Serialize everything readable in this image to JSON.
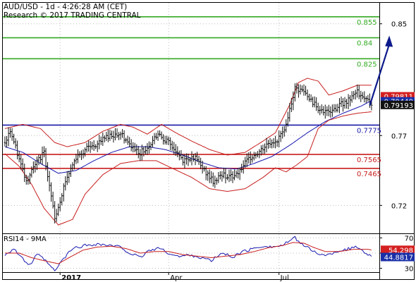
{
  "header": {
    "line1": "AUD/USD - 1d - 4:26:28 AM (CET)",
    "line2": "Research © 2017 TRADING CENTRAL"
  },
  "chart_data": [
    {
      "type": "candlestick",
      "title": "AUD/USD - 1d - 4:26:28 AM (CET)",
      "x_ticks": [
        {
          "label": "2017",
          "bold": true,
          "index": 31
        },
        {
          "label": "Apr",
          "bold": false,
          "index": 92
        },
        {
          "label": "Jul",
          "bold": false,
          "index": 154
        }
      ],
      "y_ticks": [
        0.72,
        0.77,
        0.85
      ],
      "ylim": [
        0.7,
        0.865
      ],
      "resistance_levels": [
        {
          "value": 0.855,
          "label": "0.855",
          "color": "#33aa22"
        },
        {
          "value": 0.84,
          "label": "0.84",
          "color": "#33aa22"
        },
        {
          "value": 0.825,
          "label": "0.825",
          "color": "#33aa22"
        }
      ],
      "pivot_level": {
        "value": 0.7775,
        "label": "0.7775",
        "color": "#1a1aa8"
      },
      "support_levels": [
        {
          "value": 0.7565,
          "label": "0.7565",
          "color": "#c81e1e"
        },
        {
          "value": 0.7465,
          "label": "0.7465",
          "color": "#c81e1e"
        }
      ],
      "price_tags": [
        {
          "value": 0.79811,
          "label": "0.79811",
          "color": "#d42020"
        },
        {
          "value": 0.79449,
          "label": "0.79449",
          "color": "#1a2fa8"
        },
        {
          "value": 0.79193,
          "label": "0.79193",
          "color": "#111111"
        }
      ],
      "target": [
        {
          "index": 205,
          "price": 0.7915
        },
        {
          "index": 216,
          "price": 0.8395
        }
      ],
      "series": [
        {
          "name": "price",
          "color": "#000000",
          "key_points": [
            [
              0,
              0.765
            ],
            [
              3,
              0.7735
            ],
            [
              8,
              0.753
            ],
            [
              12,
              0.738
            ],
            [
              18,
              0.751
            ],
            [
              22,
              0.758
            ],
            [
              28,
              0.71
            ],
            [
              34,
              0.737
            ],
            [
              40,
              0.754
            ],
            [
              45,
              0.76
            ],
            [
              52,
              0.764
            ],
            [
              58,
              0.77
            ],
            [
              65,
              0.771
            ],
            [
              70,
              0.763
            ],
            [
              76,
              0.758
            ],
            [
              80,
              0.761
            ],
            [
              86,
              0.772
            ],
            [
              94,
              0.762
            ],
            [
              100,
              0.752
            ],
            [
              106,
              0.755
            ],
            [
              112,
              0.745
            ],
            [
              117,
              0.737
            ],
            [
              122,
              0.742
            ],
            [
              128,
              0.74
            ],
            [
              133,
              0.747
            ],
            [
              138,
              0.754
            ],
            [
              143,
              0.758
            ],
            [
              148,
              0.764
            ],
            [
              152,
              0.766
            ],
            [
              156,
              0.771
            ],
            [
              160,
              0.788
            ],
            [
              163,
              0.803
            ],
            [
              168,
              0.801
            ],
            [
              172,
              0.795
            ],
            [
              176,
              0.79
            ],
            [
              180,
              0.786
            ],
            [
              186,
              0.79
            ],
            [
              192,
              0.795
            ],
            [
              198,
              0.801
            ],
            [
              202,
              0.798
            ],
            [
              206,
              0.792
            ]
          ]
        },
        {
          "name": "moving average",
          "color": "#1a1ab0",
          "key_points": [
            [
              0,
              0.762
            ],
            [
              10,
              0.758
            ],
            [
              20,
              0.75
            ],
            [
              30,
              0.743
            ],
            [
              40,
              0.745
            ],
            [
              50,
              0.752
            ],
            [
              60,
              0.758
            ],
            [
              70,
              0.762
            ],
            [
              80,
              0.762
            ],
            [
              90,
              0.76
            ],
            [
              100,
              0.756
            ],
            [
              110,
              0.751
            ],
            [
              120,
              0.747
            ],
            [
              130,
              0.746
            ],
            [
              140,
              0.75
            ],
            [
              150,
              0.755
            ],
            [
              160,
              0.763
            ],
            [
              170,
              0.772
            ],
            [
              180,
              0.78
            ],
            [
              190,
              0.786
            ],
            [
              200,
              0.791
            ],
            [
              206,
              0.795
            ]
          ]
        },
        {
          "name": "bollinger upper",
          "color": "#c81e1e",
          "key_points": [
            [
              0,
              0.775
            ],
            [
              10,
              0.778
            ],
            [
              20,
              0.775
            ],
            [
              28,
              0.765
            ],
            [
              35,
              0.762
            ],
            [
              45,
              0.765
            ],
            [
              55,
              0.773
            ],
            [
              65,
              0.778
            ],
            [
              72,
              0.776
            ],
            [
              80,
              0.771
            ],
            [
              88,
              0.778
            ],
            [
              96,
              0.772
            ],
            [
              105,
              0.766
            ],
            [
              115,
              0.76
            ],
            [
              125,
              0.756
            ],
            [
              135,
              0.758
            ],
            [
              145,
              0.766
            ],
            [
              152,
              0.772
            ],
            [
              160,
              0.792
            ],
            [
              165,
              0.808
            ],
            [
              170,
              0.811
            ],
            [
              176,
              0.809
            ],
            [
              182,
              0.799
            ],
            [
              190,
              0.802
            ],
            [
              198,
              0.806
            ],
            [
              206,
              0.806
            ]
          ]
        },
        {
          "name": "bollinger lower",
          "color": "#c81e1e",
          "key_points": [
            [
              0,
              0.757
            ],
            [
              8,
              0.748
            ],
            [
              15,
              0.735
            ],
            [
              22,
              0.718
            ],
            [
              30,
              0.706
            ],
            [
              38,
              0.71
            ],
            [
              45,
              0.728
            ],
            [
              55,
              0.742
            ],
            [
              65,
              0.75
            ],
            [
              75,
              0.752
            ],
            [
              85,
              0.752
            ],
            [
              95,
              0.746
            ],
            [
              105,
              0.74
            ],
            [
              115,
              0.732
            ],
            [
              125,
              0.73
            ],
            [
              135,
              0.732
            ],
            [
              145,
              0.74
            ],
            [
              152,
              0.747
            ],
            [
              158,
              0.744
            ],
            [
              164,
              0.749
            ],
            [
              170,
              0.755
            ],
            [
              176,
              0.775
            ],
            [
              182,
              0.781
            ],
            [
              190,
              0.784
            ],
            [
              198,
              0.786
            ],
            [
              206,
              0.787
            ]
          ]
        }
      ]
    },
    {
      "type": "line",
      "title": "RSI14 - 9MA",
      "y_ticks": [
        70,
        50,
        30
      ],
      "ylim": [
        25,
        75
      ],
      "value_tags": [
        {
          "value": 54.298,
          "label": "54.298",
          "color": "#d42020"
        },
        {
          "value": 44.8817,
          "label": "44.8817",
          "color": "#1a2fa8"
        }
      ],
      "series": [
        {
          "name": "RSI14",
          "color": "#1a1ab0",
          "key_points": [
            [
              0,
              48
            ],
            [
              5,
              56
            ],
            [
              10,
              42
            ],
            [
              14,
              34
            ],
            [
              18,
              48
            ],
            [
              22,
              42
            ],
            [
              28,
              26
            ],
            [
              32,
              40
            ],
            [
              38,
              56
            ],
            [
              45,
              60
            ],
            [
              52,
              62
            ],
            [
              58,
              60
            ],
            [
              65,
              58
            ],
            [
              70,
              50
            ],
            [
              76,
              44
            ],
            [
              80,
              52
            ],
            [
              86,
              57
            ],
            [
              92,
              50
            ],
            [
              98,
              45
            ],
            [
              104,
              48
            ],
            [
              110,
              44
            ],
            [
              116,
              40
            ],
            [
              122,
              50
            ],
            [
              128,
              45
            ],
            [
              134,
              52
            ],
            [
              140,
              56
            ],
            [
              146,
              60
            ],
            [
              150,
              58
            ],
            [
              156,
              60
            ],
            [
              160,
              66
            ],
            [
              163,
              70
            ],
            [
              168,
              60
            ],
            [
              172,
              54
            ],
            [
              176,
              50
            ],
            [
              180,
              46
            ],
            [
              186,
              52
            ],
            [
              192,
              55
            ],
            [
              198,
              58
            ],
            [
              202,
              52
            ],
            [
              206,
              45
            ]
          ]
        },
        {
          "name": "9MA",
          "color": "#c81e1e",
          "key_points": [
            [
              0,
              50
            ],
            [
              8,
              50
            ],
            [
              15,
              44
            ],
            [
              22,
              40
            ],
            [
              30,
              36
            ],
            [
              36,
              44
            ],
            [
              44,
              54
            ],
            [
              52,
              58
            ],
            [
              60,
              59
            ],
            [
              68,
              56
            ],
            [
              76,
              50
            ],
            [
              84,
              52
            ],
            [
              92,
              52
            ],
            [
              100,
              48
            ],
            [
              108,
              46
            ],
            [
              116,
              44
            ],
            [
              124,
              46
            ],
            [
              132,
              48
            ],
            [
              140,
              52
            ],
            [
              148,
              57
            ],
            [
              156,
              60
            ],
            [
              162,
              64
            ],
            [
              168,
              63
            ],
            [
              174,
              57
            ],
            [
              180,
              52
            ],
            [
              188,
              52
            ],
            [
              196,
              55
            ],
            [
              204,
              55
            ],
            [
              206,
              54
            ]
          ]
        }
      ]
    }
  ]
}
